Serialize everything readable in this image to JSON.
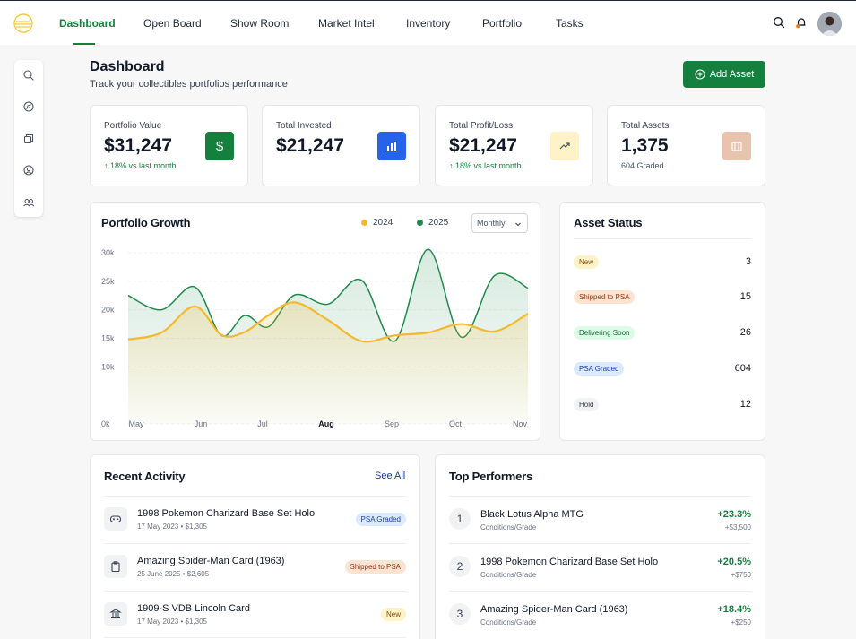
{
  "nav": {
    "items": [
      {
        "label": "Dashboard",
        "active": true
      },
      {
        "label": "Open Board"
      },
      {
        "label": "Show Room"
      },
      {
        "label": "Market Intel"
      },
      {
        "label": "Inventory"
      },
      {
        "label": "Portfolio"
      },
      {
        "label": "Tasks"
      }
    ],
    "icons": [
      "search-icon",
      "bell-icon",
      "avatar"
    ]
  },
  "sidebar": {
    "icons": [
      "search-icon",
      "compass-icon",
      "copy-icon",
      "user-circle-icon",
      "users-icon"
    ]
  },
  "header": {
    "title": "Dashboard",
    "subtitle": "Track your collectibles portfolios performance",
    "add_button": "Add Asset"
  },
  "stats": [
    {
      "label": "Portfolio Value",
      "value": "$31,247",
      "sub": "18% vs last month",
      "trend": "up",
      "icon": "dollar-icon",
      "icon_bg": "#15803d"
    },
    {
      "label": "Total Invested",
      "value": "$21,247",
      "sub": "",
      "icon": "bar-chart-icon",
      "icon_bg": "#2563eb"
    },
    {
      "label": "Total Profit/Loss",
      "value": "$21,247",
      "sub": "18% vs last month",
      "trend": "up",
      "icon": "trending-up-icon",
      "icon_bg": "#fef3c7"
    },
    {
      "label": "Total Assets",
      "value": "1,375",
      "sub": "604 Graded",
      "icon": "box-icon",
      "icon_bg": "#e8c4ae"
    }
  ],
  "growth": {
    "title": "Portfolio Growth",
    "legend": [
      "2024",
      "2025"
    ],
    "dropdown": "Monthly"
  },
  "chart_data": {
    "type": "area",
    "title": "Portfolio Growth",
    "categories": [
      "May",
      "Jun",
      "Jul",
      "Aug",
      "Sep",
      "Oct",
      "Nov"
    ],
    "yticks": [
      "30k",
      "25k",
      "20k",
      "15k",
      "10k",
      "0k"
    ],
    "ylim": [
      0,
      30000
    ],
    "highlighted_category": "Aug",
    "grid": true,
    "legend_position": "top-right",
    "series": [
      {
        "name": "2024",
        "color": "#f5b82e",
        "x": [
          0,
          0.5,
          1,
          1.4,
          1.75,
          2.1,
          2.5,
          3,
          3.5,
          4,
          4.5,
          5,
          5.5,
          6
        ],
        "values": [
          14800,
          16000,
          20600,
          15600,
          16100,
          19000,
          21300,
          18200,
          14500,
          15500,
          16000,
          17500,
          16200,
          19300
        ]
      },
      {
        "name": "2025",
        "color": "#1f8a4c",
        "x": [
          0,
          0.5,
          1,
          1.4,
          1.75,
          2.1,
          2.5,
          3,
          3.5,
          4,
          4.5,
          5,
          5.5,
          6
        ],
        "values": [
          22500,
          20000,
          24000,
          15500,
          19000,
          17000,
          22600,
          21000,
          25200,
          14500,
          30600,
          15200,
          26000,
          23800
        ]
      }
    ]
  },
  "asset_status": {
    "title": "Asset Status",
    "rows": [
      {
        "label": "New",
        "count": "3",
        "bg": "#fef3c7",
        "fg": "#854d0e"
      },
      {
        "label": "Shipped to PSA",
        "count": "15",
        "bg": "#fde4d2",
        "fg": "#9a3412"
      },
      {
        "label": "Delivering Soon",
        "count": "26",
        "bg": "#dcfce7",
        "fg": "#166534"
      },
      {
        "label": "PSA Graded",
        "count": "604",
        "bg": "#dbeafe",
        "fg": "#1e40af"
      },
      {
        "label": "Hold",
        "count": "12",
        "bg": "#f1f2f4",
        "fg": "#374151"
      }
    ]
  },
  "recent_activity": {
    "title": "Recent Activity",
    "see_all": "See All",
    "items": [
      {
        "name": "1998 Pokemon Charizard Base Set Holo",
        "meta": "17 May 2023  •  $1,305",
        "badge": "PSA Graded",
        "badge_bg": "#dbeafe",
        "badge_fg": "#1e40af",
        "icon": "gamepad-icon"
      },
      {
        "name": "Amazing Spider-Man Card (1963)",
        "meta": "25 June 2025  •  $2,605",
        "badge": "Shipped to PSA",
        "badge_bg": "#fde4d2",
        "badge_fg": "#9a3412",
        "icon": "clipboard-icon"
      },
      {
        "name": "1909-S VDB Lincoln Card",
        "meta": "17 May 2023  •  $1,305",
        "badge": "New",
        "badge_bg": "#fef3c7",
        "badge_fg": "#854d0e",
        "icon": "bank-icon"
      }
    ]
  },
  "top_performers": {
    "title": "Top Performers",
    "items": [
      {
        "rank": "1",
        "name": "Black Lotus Alpha MTG",
        "meta": "Conditions/Grade",
        "pct": "+23.3%",
        "amt": "+$3,500"
      },
      {
        "rank": "2",
        "name": "1998 Pokemon Charizard Base Set Holo",
        "meta": "Conditions/Grade",
        "pct": "+20.5%",
        "amt": "+$750"
      },
      {
        "rank": "3",
        "name": "Amazing Spider-Man Card (1963)",
        "meta": "Conditions/Grade",
        "pct": "+18.4%",
        "amt": "+$250"
      }
    ]
  }
}
